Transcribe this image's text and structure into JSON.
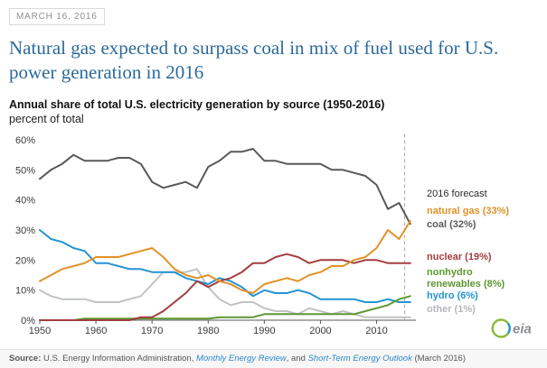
{
  "header": {
    "date": "MARCH 16, 2016",
    "title": "Natural gas expected to surpass coal in mix of fuel used for U.S. power generation in 2016"
  },
  "chart": {
    "heading": "Annual share of total U.S. electricity generation by source (1950-2016)",
    "subheading": "percent of total"
  },
  "chart_data": {
    "type": "line",
    "title": "Annual share of total U.S. electricity generation by source (1950-2016)",
    "ylabel": "percent of total",
    "xlim": [
      1950,
      2017
    ],
    "ylim": [
      0,
      63
    ],
    "grid": false,
    "legend_position": "right-annotations",
    "xticks": [
      1950,
      1960,
      1970,
      1980,
      1990,
      2000,
      2010
    ],
    "yticks": [
      0,
      10,
      20,
      30,
      40,
      50,
      60
    ],
    "ytick_suffix": "%",
    "forecast_x": 2015,
    "x": [
      1950,
      1952,
      1954,
      1956,
      1958,
      1960,
      1962,
      1964,
      1966,
      1968,
      1970,
      1972,
      1974,
      1976,
      1978,
      1980,
      1982,
      1984,
      1986,
      1988,
      1990,
      1992,
      1994,
      1996,
      1998,
      2000,
      2002,
      2004,
      2006,
      2008,
      2010,
      2012,
      2014,
      2016
    ],
    "series": [
      {
        "name": "other",
        "color": "#c0c2c4",
        "values": [
          10,
          8,
          7,
          7,
          7,
          6,
          6,
          6,
          7,
          8,
          12,
          16,
          16,
          16,
          17,
          11,
          7,
          5,
          6,
          6,
          4,
          3,
          3,
          2,
          4,
          3,
          2,
          3,
          2,
          1,
          1,
          1,
          1,
          1
        ]
      },
      {
        "name": "hydro",
        "color": "#2394d2",
        "values": [
          30,
          27,
          26,
          24,
          23,
          19,
          19,
          18,
          17,
          17,
          16,
          16,
          16,
          14,
          13,
          12,
          14,
          13,
          11,
          8,
          10,
          9,
          9,
          10,
          9,
          7,
          7,
          7,
          7,
          6,
          6,
          7,
          6,
          6
        ]
      },
      {
        "name": "nonhydro renewables",
        "color": "#5d9732",
        "values": [
          0,
          0,
          0,
          0,
          0.5,
          0.5,
          0.5,
          0.5,
          0.5,
          0.5,
          0.5,
          0.5,
          0.5,
          0.5,
          0.5,
          0.5,
          1,
          1,
          1,
          1,
          2,
          2,
          2,
          2,
          2,
          2,
          2,
          2,
          2,
          3,
          4,
          5,
          7,
          8
        ]
      },
      {
        "name": "coal",
        "color": "#58595b",
        "values": [
          47,
          50,
          52,
          55,
          53,
          53,
          53,
          54,
          54,
          52,
          46,
          44,
          45,
          46,
          44,
          51,
          53,
          56,
          56,
          57,
          53,
          53,
          52,
          52,
          52,
          52,
          50,
          50,
          49,
          48,
          45,
          37,
          39,
          32
        ]
      },
      {
        "name": "nuclear",
        "color": "#a33d40",
        "values": [
          0,
          0,
          0,
          0,
          0,
          0,
          0,
          0,
          0,
          1,
          1,
          3,
          6,
          9,
          13,
          11,
          13,
          14,
          16,
          19,
          19,
          21,
          22,
          21,
          19,
          20,
          20,
          20,
          19,
          20,
          20,
          19,
          19,
          19
        ]
      },
      {
        "name": "natural gas",
        "color": "#e19126",
        "values": [
          13,
          15,
          17,
          18,
          19,
          21,
          21,
          21,
          22,
          23,
          24,
          21,
          17,
          15,
          14,
          15,
          13,
          12,
          10,
          9,
          12,
          13,
          14,
          13,
          15,
          16,
          18,
          18,
          20,
          21,
          24,
          30,
          27,
          33
        ]
      }
    ],
    "annotations": [
      {
        "text": "2016 forecast",
        "pct": 41.5,
        "color": "#2b2b2b",
        "bold": false
      },
      {
        "text": "natural gas (33%)",
        "pct": 36,
        "color": "#e19126",
        "bold": true
      },
      {
        "text": "coal (32%)",
        "pct": 31.5,
        "color": "#58595b",
        "bold": true
      },
      {
        "text": "nuclear (19%)",
        "pct": 20.5,
        "color": "#a33d40",
        "bold": true
      },
      {
        "text": "nonhydro",
        "pct": 15.5,
        "color": "#5d9732",
        "bold": true
      },
      {
        "text": "renewables (8%)",
        "pct": 11.6,
        "color": "#5d9732",
        "bold": true
      },
      {
        "text": "hydro (6%)",
        "pct": 7.6,
        "color": "#2394d2",
        "bold": true
      },
      {
        "text": "other (1%)",
        "pct": 3.2,
        "color": "#b5b7b9",
        "bold": true
      }
    ]
  },
  "footer": {
    "source_label": "Source:",
    "source_prefix": " U.S. Energy Information Administration, ",
    "link1": "Monthly Energy Review",
    "source_mid": ", and ",
    "link2": "Short-Term Energy Outlook",
    "source_suffix": " (March 2016)",
    "logo_text": "eia"
  }
}
